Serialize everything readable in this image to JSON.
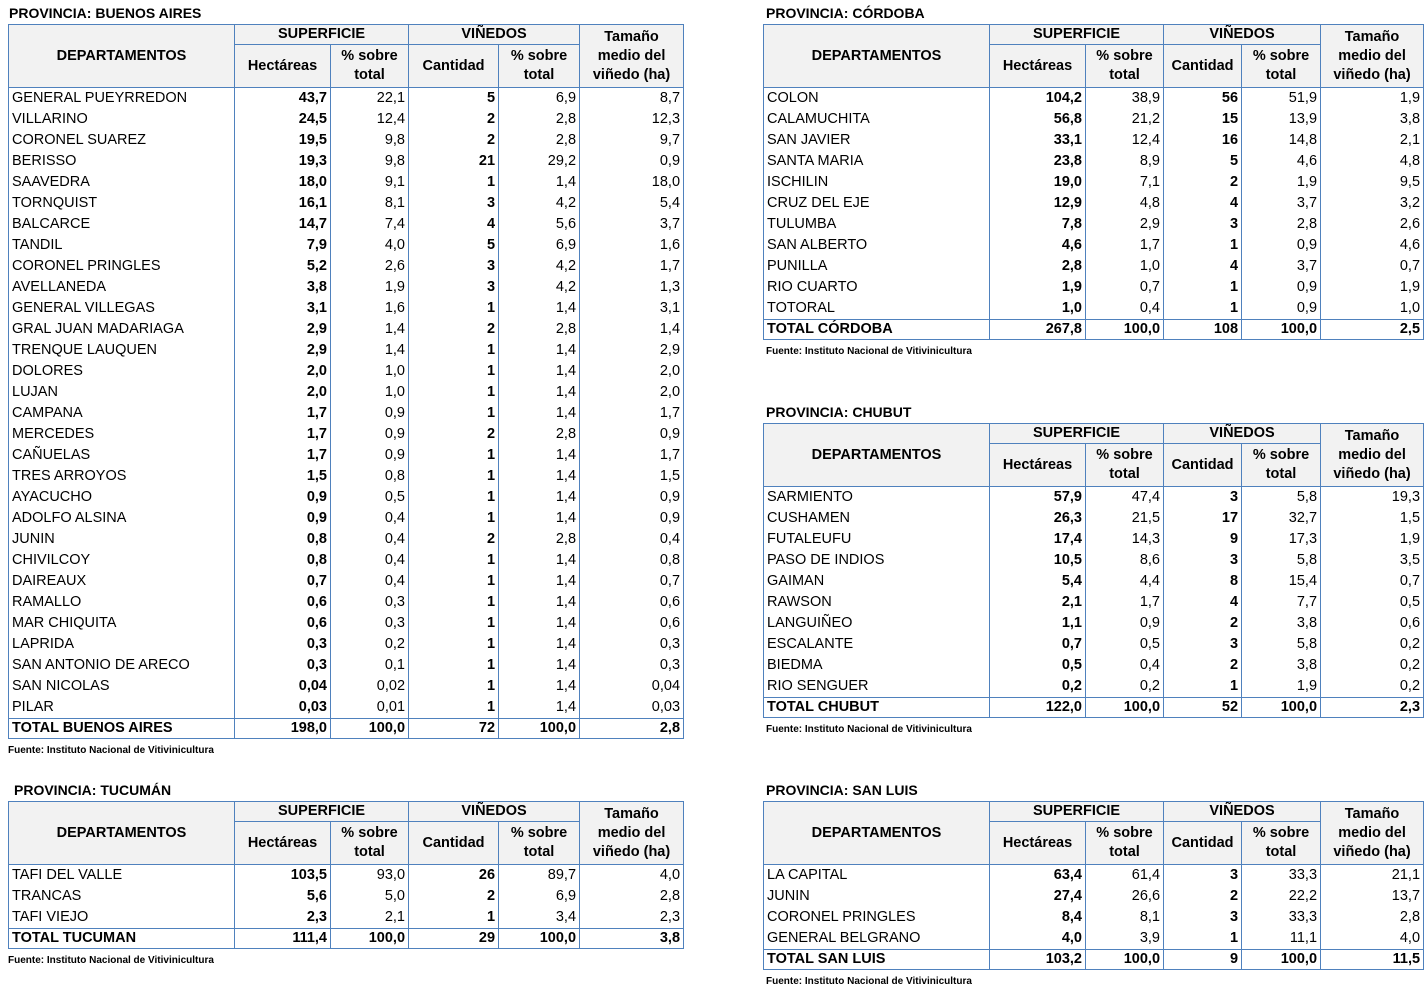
{
  "headers": {
    "departamentos": "DEPARTAMENTOS",
    "superficie": "SUPERFICIE",
    "vinedos": "VIÑEDOS",
    "tamano": [
      "Tamaño",
      "medio del",
      "viñedo (ha)"
    ],
    "hectareas": "Hectáreas",
    "pct": [
      "% sobre",
      "total"
    ],
    "cantidad": "Cantidad"
  },
  "source": "Fuente: Instituto Nacional de Vitivinicultura",
  "provinces": {
    "buenos_aires": {
      "title": "PROVINCIA: BUENOS AIRES",
      "rows": [
        [
          "GENERAL PUEYRREDON",
          "43,7",
          "22,1",
          "5",
          "6,9",
          "8,7"
        ],
        [
          "VILLARINO",
          "24,5",
          "12,4",
          "2",
          "2,8",
          "12,3"
        ],
        [
          "CORONEL SUAREZ",
          "19,5",
          "9,8",
          "2",
          "2,8",
          "9,7"
        ],
        [
          "BERISSO",
          "19,3",
          "9,8",
          "21",
          "29,2",
          "0,9"
        ],
        [
          "SAAVEDRA",
          "18,0",
          "9,1",
          "1",
          "1,4",
          "18,0"
        ],
        [
          "TORNQUIST",
          "16,1",
          "8,1",
          "3",
          "4,2",
          "5,4"
        ],
        [
          "BALCARCE",
          "14,7",
          "7,4",
          "4",
          "5,6",
          "3,7"
        ],
        [
          "TANDIL",
          "7,9",
          "4,0",
          "5",
          "6,9",
          "1,6"
        ],
        [
          "CORONEL PRINGLES",
          "5,2",
          "2,6",
          "3",
          "4,2",
          "1,7"
        ],
        [
          "AVELLANEDA",
          "3,8",
          "1,9",
          "3",
          "4,2",
          "1,3"
        ],
        [
          "GENERAL VILLEGAS",
          "3,1",
          "1,6",
          "1",
          "1,4",
          "3,1"
        ],
        [
          "GRAL JUAN MADARIAGA",
          "2,9",
          "1,4",
          "2",
          "2,8",
          "1,4"
        ],
        [
          "TRENQUE LAUQUEN",
          "2,9",
          "1,4",
          "1",
          "1,4",
          "2,9"
        ],
        [
          "DOLORES",
          "2,0",
          "1,0",
          "1",
          "1,4",
          "2,0"
        ],
        [
          "LUJAN",
          "2,0",
          "1,0",
          "1",
          "1,4",
          "2,0"
        ],
        [
          "CAMPANA",
          "1,7",
          "0,9",
          "1",
          "1,4",
          "1,7"
        ],
        [
          "MERCEDES",
          "1,7",
          "0,9",
          "2",
          "2,8",
          "0,9"
        ],
        [
          "CAÑUELAS",
          "1,7",
          "0,9",
          "1",
          "1,4",
          "1,7"
        ],
        [
          "TRES ARROYOS",
          "1,5",
          "0,8",
          "1",
          "1,4",
          "1,5"
        ],
        [
          "AYACUCHO",
          "0,9",
          "0,5",
          "1",
          "1,4",
          "0,9"
        ],
        [
          "ADOLFO ALSINA",
          "0,9",
          "0,4",
          "1",
          "1,4",
          "0,9"
        ],
        [
          "JUNIN",
          "0,8",
          "0,4",
          "2",
          "2,8",
          "0,4"
        ],
        [
          "CHIVILCOY",
          "0,8",
          "0,4",
          "1",
          "1,4",
          "0,8"
        ],
        [
          "DAIREAUX",
          "0,7",
          "0,4",
          "1",
          "1,4",
          "0,7"
        ],
        [
          "RAMALLO",
          "0,6",
          "0,3",
          "1",
          "1,4",
          "0,6"
        ],
        [
          "MAR CHIQUITA",
          "0,6",
          "0,3",
          "1",
          "1,4",
          "0,6"
        ],
        [
          "LAPRIDA",
          "0,3",
          "0,2",
          "1",
          "1,4",
          "0,3"
        ],
        [
          "SAN ANTONIO DE ARECO",
          "0,3",
          "0,1",
          "1",
          "1,4",
          "0,3"
        ],
        [
          "SAN NICOLAS",
          "0,04",
          "0,02",
          "1",
          "1,4",
          "0,04"
        ],
        [
          "PILAR",
          "0,03",
          "0,01",
          "1",
          "1,4",
          "0,03"
        ]
      ],
      "total": [
        "TOTAL BUENOS AIRES",
        "198,0",
        "100,0",
        "72",
        "100,0",
        "2,8"
      ]
    },
    "cordoba": {
      "title": "PROVINCIA: CÓRDOBA",
      "rows": [
        [
          "COLON",
          "104,2",
          "38,9",
          "56",
          "51,9",
          "1,9"
        ],
        [
          "CALAMUCHITA",
          "56,8",
          "21,2",
          "15",
          "13,9",
          "3,8"
        ],
        [
          "SAN JAVIER",
          "33,1",
          "12,4",
          "16",
          "14,8",
          "2,1"
        ],
        [
          "SANTA MARIA",
          "23,8",
          "8,9",
          "5",
          "4,6",
          "4,8"
        ],
        [
          "ISCHILIN",
          "19,0",
          "7,1",
          "2",
          "1,9",
          "9,5"
        ],
        [
          "CRUZ DEL EJE",
          "12,9",
          "4,8",
          "4",
          "3,7",
          "3,2"
        ],
        [
          "TULUMBA",
          "7,8",
          "2,9",
          "3",
          "2,8",
          "2,6"
        ],
        [
          "SAN ALBERTO",
          "4,6",
          "1,7",
          "1",
          "0,9",
          "4,6"
        ],
        [
          "PUNILLA",
          "2,8",
          "1,0",
          "4",
          "3,7",
          "0,7"
        ],
        [
          "RIO CUARTO",
          "1,9",
          "0,7",
          "1",
          "0,9",
          "1,9"
        ],
        [
          "TOTORAL",
          "1,0",
          "0,4",
          "1",
          "0,9",
          "1,0"
        ]
      ],
      "total": [
        "TOTAL  CÓRDOBA",
        "267,8",
        "100,0",
        "108",
        "100,0",
        "2,5"
      ]
    },
    "chubut": {
      "title": "PROVINCIA: CHUBUT",
      "rows": [
        [
          "SARMIENTO",
          "57,9",
          "47,4",
          "3",
          "5,8",
          "19,3"
        ],
        [
          "CUSHAMEN",
          "26,3",
          "21,5",
          "17",
          "32,7",
          "1,5"
        ],
        [
          "FUTALEUFU",
          "17,4",
          "14,3",
          "9",
          "17,3",
          "1,9"
        ],
        [
          "PASO DE INDIOS",
          "10,5",
          "8,6",
          "3",
          "5,8",
          "3,5"
        ],
        [
          "GAIMAN",
          "5,4",
          "4,4",
          "8",
          "15,4",
          "0,7"
        ],
        [
          "RAWSON",
          "2,1",
          "1,7",
          "4",
          "7,7",
          "0,5"
        ],
        [
          "LANGUIÑEO",
          "1,1",
          "0,9",
          "2",
          "3,8",
          "0,6"
        ],
        [
          "ESCALANTE",
          "0,7",
          "0,5",
          "3",
          "5,8",
          "0,2"
        ],
        [
          "BIEDMA",
          "0,5",
          "0,4",
          "2",
          "3,8",
          "0,2"
        ],
        [
          "RIO SENGUER",
          "0,2",
          "0,2",
          "1",
          "1,9",
          "0,2"
        ]
      ],
      "total": [
        "TOTAL  CHUBUT",
        "122,0",
        "100,0",
        "52",
        "100,0",
        "2,3"
      ]
    },
    "tucuman": {
      "title": "PROVINCIA: TUCUMÁN",
      "rows": [
        [
          "TAFI DEL VALLE",
          "103,5",
          "93,0",
          "26",
          "89,7",
          "4,0"
        ],
        [
          "TRANCAS",
          "5,6",
          "5,0",
          "2",
          "6,9",
          "2,8"
        ],
        [
          "TAFI VIEJO",
          "2,3",
          "2,1",
          "1",
          "3,4",
          "2,3"
        ]
      ],
      "total": [
        "TOTAL TUCUMAN",
        "111,4",
        "100,0",
        "29",
        "100,0",
        "3,8"
      ]
    },
    "san_luis": {
      "title": "PROVINCIA: SAN LUIS",
      "rows": [
        [
          "LA CAPITAL",
          "63,4",
          "61,4",
          "3",
          "33,3",
          "21,1"
        ],
        [
          "JUNIN",
          "27,4",
          "26,6",
          "2",
          "22,2",
          "13,7"
        ],
        [
          "CORONEL PRINGLES",
          "8,4",
          "8,1",
          "3",
          "33,3",
          "2,8"
        ],
        [
          "GENERAL BELGRANO",
          "4,0",
          "3,9",
          "1",
          "11,1",
          "4,0"
        ]
      ],
      "total": [
        "TOTAL  SAN LUIS",
        "103,2",
        "100,0",
        "9",
        "100,0",
        "11,5"
      ]
    }
  }
}
